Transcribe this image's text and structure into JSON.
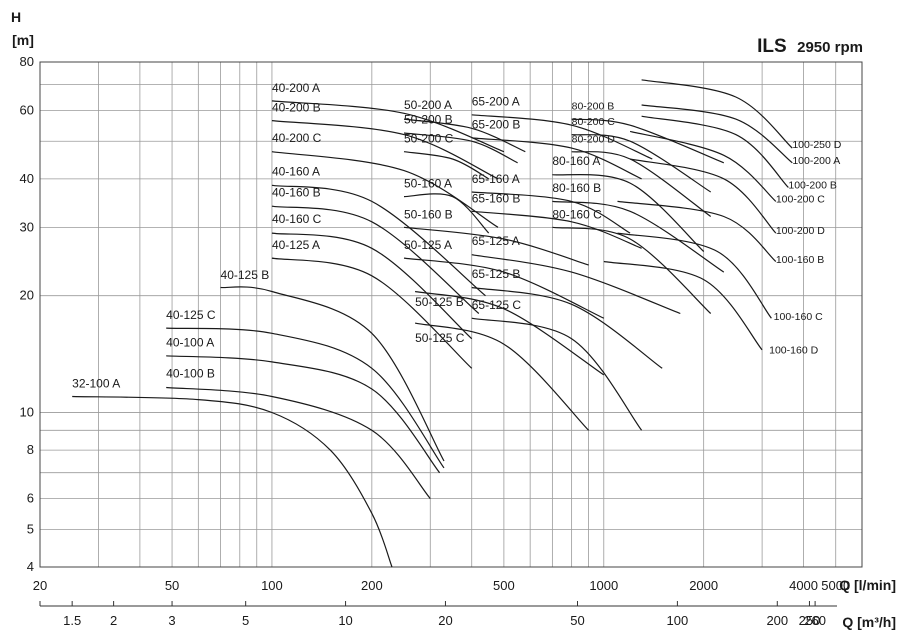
{
  "chart_data": {
    "type": "line",
    "title": "ILS",
    "subtitle": "2950 rpm",
    "ylabel": "H",
    "yunit": "[m]",
    "xlabel": "Q [l/min]",
    "x2label": "Q [m³/h]",
    "xscale": "log",
    "yscale": "log",
    "xlim": [
      20,
      6000
    ],
    "ylim": [
      4,
      80
    ],
    "grid": true,
    "xticks": [
      "20",
      "50",
      "100",
      "200",
      "500",
      "1000",
      "2000",
      "4000",
      "5000"
    ],
    "xticks_values": [
      20,
      50,
      100,
      200,
      500,
      1000,
      2000,
      4000,
      5000
    ],
    "yticks": [
      "4",
      "5",
      "6",
      "8",
      "10",
      "20",
      "30",
      "40",
      "60",
      "80"
    ],
    "yticks_values": [
      4,
      5,
      6,
      8,
      10,
      20,
      30,
      40,
      60,
      80
    ],
    "x2ticks": [
      "1.5",
      "2",
      "3",
      "5",
      "10",
      "20",
      "50",
      "100",
      "200",
      "250",
      "260"
    ],
    "x2ticks_values": [
      1.5,
      2,
      3,
      5,
      10,
      20,
      50,
      100,
      200,
      250,
      260
    ],
    "series": [
      {
        "name": "32-100 A",
        "x": [
          25,
          60,
          100,
          150,
          200,
          230
        ],
        "y": [
          11,
          10.8,
          10,
          8,
          5.5,
          4
        ],
        "label_x": 25,
        "label_y": 11.6
      },
      {
        "name": "40-100 B",
        "x": [
          48,
          100,
          200,
          300
        ],
        "y": [
          11.6,
          11,
          9,
          6
        ],
        "label_x": 48,
        "label_y": 12.3
      },
      {
        "name": "40-100 A",
        "x": [
          48,
          100,
          200,
          320
        ],
        "y": [
          14,
          13.5,
          11.5,
          7
        ],
        "label_x": 48,
        "label_y": 14.8
      },
      {
        "name": "40-125 C",
        "x": [
          48,
          100,
          200,
          330
        ],
        "y": [
          16.5,
          16,
          13,
          7.2
        ],
        "label_x": 48,
        "label_y": 17.4
      },
      {
        "name": "40-125 B",
        "x": [
          70,
          100,
          200,
          330
        ],
        "y": [
          21,
          20.5,
          16,
          7.5
        ],
        "label_x": 70,
        "label_y": 22.1
      },
      {
        "name": "40-125 A",
        "x": [
          100,
          200,
          400
        ],
        "y": [
          25,
          22.5,
          13
        ],
        "label_x": 100,
        "label_y": 26.4
      },
      {
        "name": "40-160 C",
        "x": [
          100,
          200,
          400
        ],
        "y": [
          29,
          26.5,
          15.5
        ],
        "label_x": 100,
        "label_y": 30.8
      },
      {
        "name": "40-160 B",
        "x": [
          100,
          200,
          420
        ],
        "y": [
          34,
          31,
          18
        ],
        "label_x": 100,
        "label_y": 36
      },
      {
        "name": "40-160 A",
        "x": [
          100,
          200,
          440
        ],
        "y": [
          38.5,
          35,
          20
        ],
        "label_x": 100,
        "label_y": 40.8
      },
      {
        "name": "40-200 C",
        "x": [
          100,
          250,
          480
        ],
        "y": [
          47,
          42,
          30
        ],
        "label_x": 100,
        "label_y": 49.8
      },
      {
        "name": "40-200 B",
        "x": [
          100,
          250,
          480
        ],
        "y": [
          56.5,
          52,
          40
        ],
        "label_x": 100,
        "label_y": 59.7
      },
      {
        "name": "40-200 A",
        "x": [
          100,
          250,
          500
        ],
        "y": [
          63.5,
          59,
          47
        ],
        "label_x": 100,
        "label_y": 67
      },
      {
        "name": "50-125 C",
        "x": [
          270,
          500,
          900
        ],
        "y": [
          17,
          15,
          9
        ],
        "label_x": 270,
        "label_y": 15.2
      },
      {
        "name": "50-125 B",
        "x": [
          270,
          500,
          1000
        ],
        "y": [
          20.5,
          18.5,
          12.5
        ],
        "label_x": 270,
        "label_y": 18.8
      },
      {
        "name": "50-125 A",
        "x": [
          250,
          500,
          1000
        ],
        "y": [
          25,
          23,
          17.5
        ],
        "label_x": 250,
        "label_y": 26.4
      },
      {
        "name": "50-160 B",
        "x": [
          250,
          500,
          900
        ],
        "y": [
          30,
          28,
          24
        ],
        "label_x": 250,
        "label_y": 31.6
      },
      {
        "name": "50-160 A",
        "x": [
          250,
          350,
          450
        ],
        "y": [
          36,
          36,
          29
        ],
        "label_x": 250,
        "label_y": 38
      },
      {
        "name": "50-200 C",
        "x": [
          250,
          350,
          450
        ],
        "y": [
          47,
          45,
          40
        ],
        "label_x": 250,
        "label_y": 49.6
      },
      {
        "name": "50-200 B",
        "x": [
          250,
          400,
          550
        ],
        "y": [
          52.5,
          50,
          44
        ],
        "label_x": 250,
        "label_y": 55.6
      },
      {
        "name": "50-200 A",
        "x": [
          250,
          400,
          580
        ],
        "y": [
          57,
          54,
          47
        ],
        "label_x": 250,
        "label_y": 60.5
      },
      {
        "name": "65-125 C",
        "x": [
          400,
          800,
          1300
        ],
        "y": [
          17.5,
          15.5,
          9
        ],
        "label_x": 400,
        "label_y": 18.5
      },
      {
        "name": "65-125 B",
        "x": [
          400,
          800,
          1500
        ],
        "y": [
          21,
          19,
          13
        ],
        "label_x": 400,
        "label_y": 22.2
      },
      {
        "name": "65-125 A",
        "x": [
          400,
          800,
          1700
        ],
        "y": [
          25.5,
          23,
          18
        ],
        "label_x": 400,
        "label_y": 27
      },
      {
        "name": "65-160 B",
        "x": [
          400,
          800,
          1300
        ],
        "y": [
          33,
          31,
          26.5
        ],
        "label_x": 400,
        "label_y": 34.8
      },
      {
        "name": "65-160 A",
        "x": [
          400,
          800,
          1200
        ],
        "y": [
          37,
          35,
          29
        ],
        "label_x": 400,
        "label_y": 39
      },
      {
        "name": "65-200 B",
        "x": [
          400,
          800,
          1300
        ],
        "y": [
          51,
          48,
          40
        ],
        "label_x": 400,
        "label_y": 54
      },
      {
        "name": "65-200 A",
        "x": [
          400,
          800,
          1400
        ],
        "y": [
          58.5,
          55,
          45
        ],
        "label_x": 400,
        "label_y": 61.8
      },
      {
        "name": "80-160 C",
        "x": [
          700,
          1200,
          2100
        ],
        "y": [
          30,
          28,
          18
        ],
        "label_x": 700,
        "label_y": 31.6
      },
      {
        "name": "80-160 B",
        "x": [
          700,
          1200,
          2300
        ],
        "y": [
          35,
          33,
          23
        ],
        "label_x": 700,
        "label_y": 37
      },
      {
        "name": "80-160 A",
        "x": [
          700,
          1200,
          2000
        ],
        "y": [
          41,
          39,
          26
        ],
        "label_x": 700,
        "label_y": 43.4
      },
      {
        "name": "80-200 D",
        "x": [
          800,
          1200,
          2100
        ],
        "y": [
          47,
          45,
          32
        ],
        "label_x": 800,
        "label_y": 49.6
      },
      {
        "name": "80-200 C",
        "x": [
          800,
          1200,
          2100
        ],
        "y": [
          52,
          50,
          37
        ],
        "label_x": 800,
        "label_y": 55
      },
      {
        "name": "80-200 B",
        "x": [
          800,
          1200,
          2300
        ],
        "y": [
          57,
          55,
          44
        ],
        "label_x": 800,
        "label_y": 60.3
      },
      {
        "name": "100-160 D",
        "x": [
          1000,
          2000,
          3000
        ],
        "y": [
          24.5,
          22,
          14.5
        ],
        "label_x": 3150,
        "label_y": 14.2
      },
      {
        "name": "100-160 C",
        "x": [
          1100,
          2200,
          3200
        ],
        "y": [
          29,
          26,
          17.5
        ],
        "label_x": 3250,
        "label_y": 17.3
      },
      {
        "name": "100-160 B",
        "x": [
          1100,
          2300,
          3300
        ],
        "y": [
          35,
          32,
          24.5
        ],
        "label_x": 3300,
        "label_y": 24.3
      },
      {
        "name": "100-200 D",
        "x": [
          1200,
          2300,
          3300
        ],
        "y": [
          45,
          40,
          29
        ],
        "label_x": 3300,
        "label_y": 28.8
      },
      {
        "name": "100-200 C",
        "x": [
          1200,
          2300,
          3300
        ],
        "y": [
          53,
          46,
          35
        ],
        "label_x": 3300,
        "label_y": 34.8
      },
      {
        "name": "100-200 B",
        "x": [
          1300,
          2500,
          3600
        ],
        "y": [
          58,
          52,
          38
        ],
        "label_x": 3600,
        "label_y": 37.8
      },
      {
        "name": "100-200 A",
        "x": [
          1300,
          2500,
          3700
        ],
        "y": [
          62,
          57,
          44
        ],
        "label_x": 3700,
        "label_y": 43.7
      },
      {
        "name": "100-250 D",
        "x": [
          1300,
          2500,
          3700
        ],
        "y": [
          72,
          65,
          48
        ],
        "label_x": 3700,
        "label_y": 48
      }
    ]
  }
}
